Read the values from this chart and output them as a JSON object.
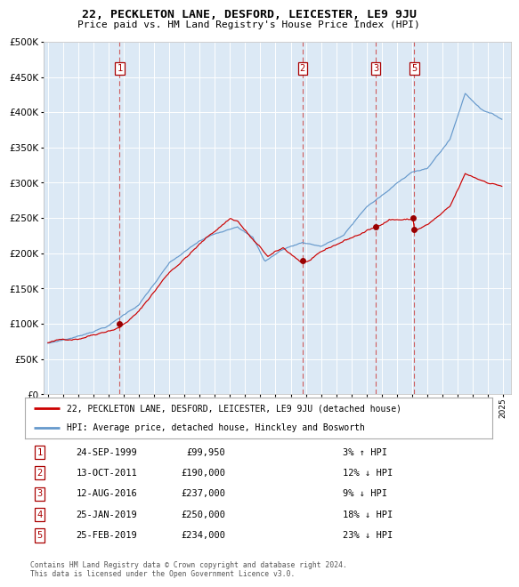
{
  "title": "22, PECKLETON LANE, DESFORD, LEICESTER, LE9 9JU",
  "subtitle": "Price paid vs. HM Land Registry's House Price Index (HPI)",
  "legend_line1": "22, PECKLETON LANE, DESFORD, LEICESTER, LE9 9JU (detached house)",
  "legend_line2": "HPI: Average price, detached house, Hinckley and Bosworth",
  "red_line_color": "#cc0000",
  "blue_line_color": "#6699cc",
  "bg_color": "#dce9f5",
  "sales": [
    {
      "label": "1",
      "date_x": 1999.73,
      "price": 99950
    },
    {
      "label": "2",
      "date_x": 2011.78,
      "price": 190000
    },
    {
      "label": "3",
      "date_x": 2016.61,
      "price": 237000
    },
    {
      "label": "4",
      "date_x": 2019.07,
      "price": 250000
    },
    {
      "label": "5",
      "date_x": 2019.15,
      "price": 234000
    }
  ],
  "vlines": [
    1999.73,
    2011.78,
    2016.61,
    2019.15
  ],
  "box_labels": [
    {
      "label": "1",
      "x": 1999.73
    },
    {
      "label": "2",
      "x": 2011.78
    },
    {
      "label": "3",
      "x": 2016.61
    },
    {
      "label": "5",
      "x": 2019.15
    }
  ],
  "table_rows": [
    [
      "1",
      "24-SEP-1999",
      "£99,950",
      "3% ↑ HPI"
    ],
    [
      "2",
      "13-OCT-2011",
      "£190,000",
      "12% ↓ HPI"
    ],
    [
      "3",
      "12-AUG-2016",
      "£237,000",
      "9% ↓ HPI"
    ],
    [
      "4",
      "25-JAN-2019",
      "£250,000",
      "18% ↓ HPI"
    ],
    [
      "5",
      "25-FEB-2019",
      "£234,000",
      "23% ↓ HPI"
    ]
  ],
  "footer": "Contains HM Land Registry data © Crown copyright and database right 2024.\nThis data is licensed under the Open Government Licence v3.0.",
  "ylim": [
    0,
    500000
  ],
  "yticks": [
    0,
    50000,
    100000,
    150000,
    200000,
    250000,
    300000,
    350000,
    400000,
    450000,
    500000
  ],
  "xlim": [
    1994.7,
    2025.5
  ]
}
